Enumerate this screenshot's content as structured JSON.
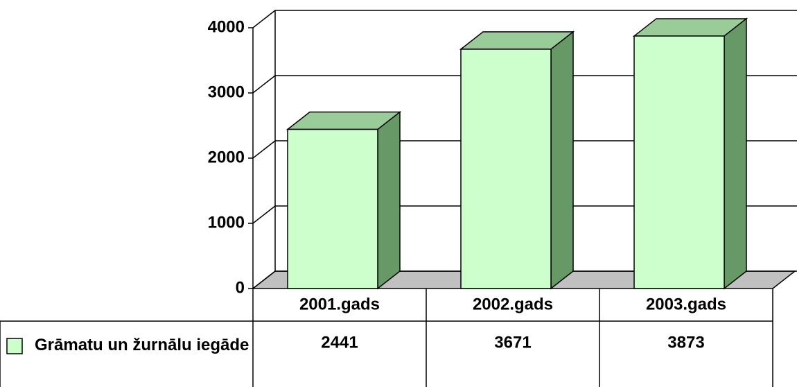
{
  "chart_data": {
    "type": "bar3d",
    "categories": [
      "2001.gads",
      "2002.gads",
      "2003.gads"
    ],
    "series": [
      {
        "name": "Grāmatu un žurnālu iegāde",
        "color": "#ccffcc",
        "values": [
          2441,
          3671,
          3873
        ]
      }
    ],
    "ylim": [
      0,
      4000
    ],
    "yticks": [
      0,
      1000,
      2000,
      3000,
      4000
    ],
    "grid": true,
    "legend": "bottom-left",
    "data_table": true
  }
}
